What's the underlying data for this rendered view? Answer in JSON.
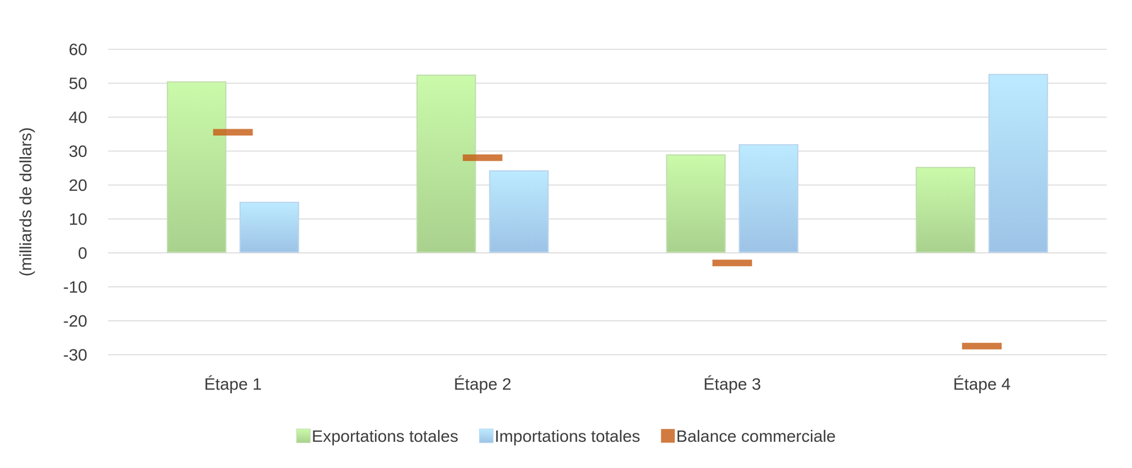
{
  "chart_data": {
    "type": "bar",
    "y_label": "(milliards de dollars)",
    "categories": [
      "Étape 1",
      "Étape 2",
      "Étape 3",
      "Étape 4"
    ],
    "series": [
      {
        "name": "Exportations totales",
        "type": "bar",
        "color": "#a9d18e",
        "values": [
          50.5,
          52.5,
          29,
          25.3
        ]
      },
      {
        "name": "Importations totales",
        "type": "bar",
        "color": "#9dc3e6",
        "values": [
          15,
          24.3,
          32,
          52.7
        ]
      },
      {
        "name": "Balance commerciale",
        "type": "scatter",
        "marker": "dash",
        "color": "#c55a11",
        "values": [
          35.5,
          28,
          -3,
          -27.5
        ]
      }
    ],
    "ylim": [
      -30,
      60
    ],
    "yticks": [
      -30,
      -20,
      -10,
      0,
      10,
      20,
      30,
      40,
      50,
      60
    ],
    "grid": true,
    "legend": "bottom"
  }
}
